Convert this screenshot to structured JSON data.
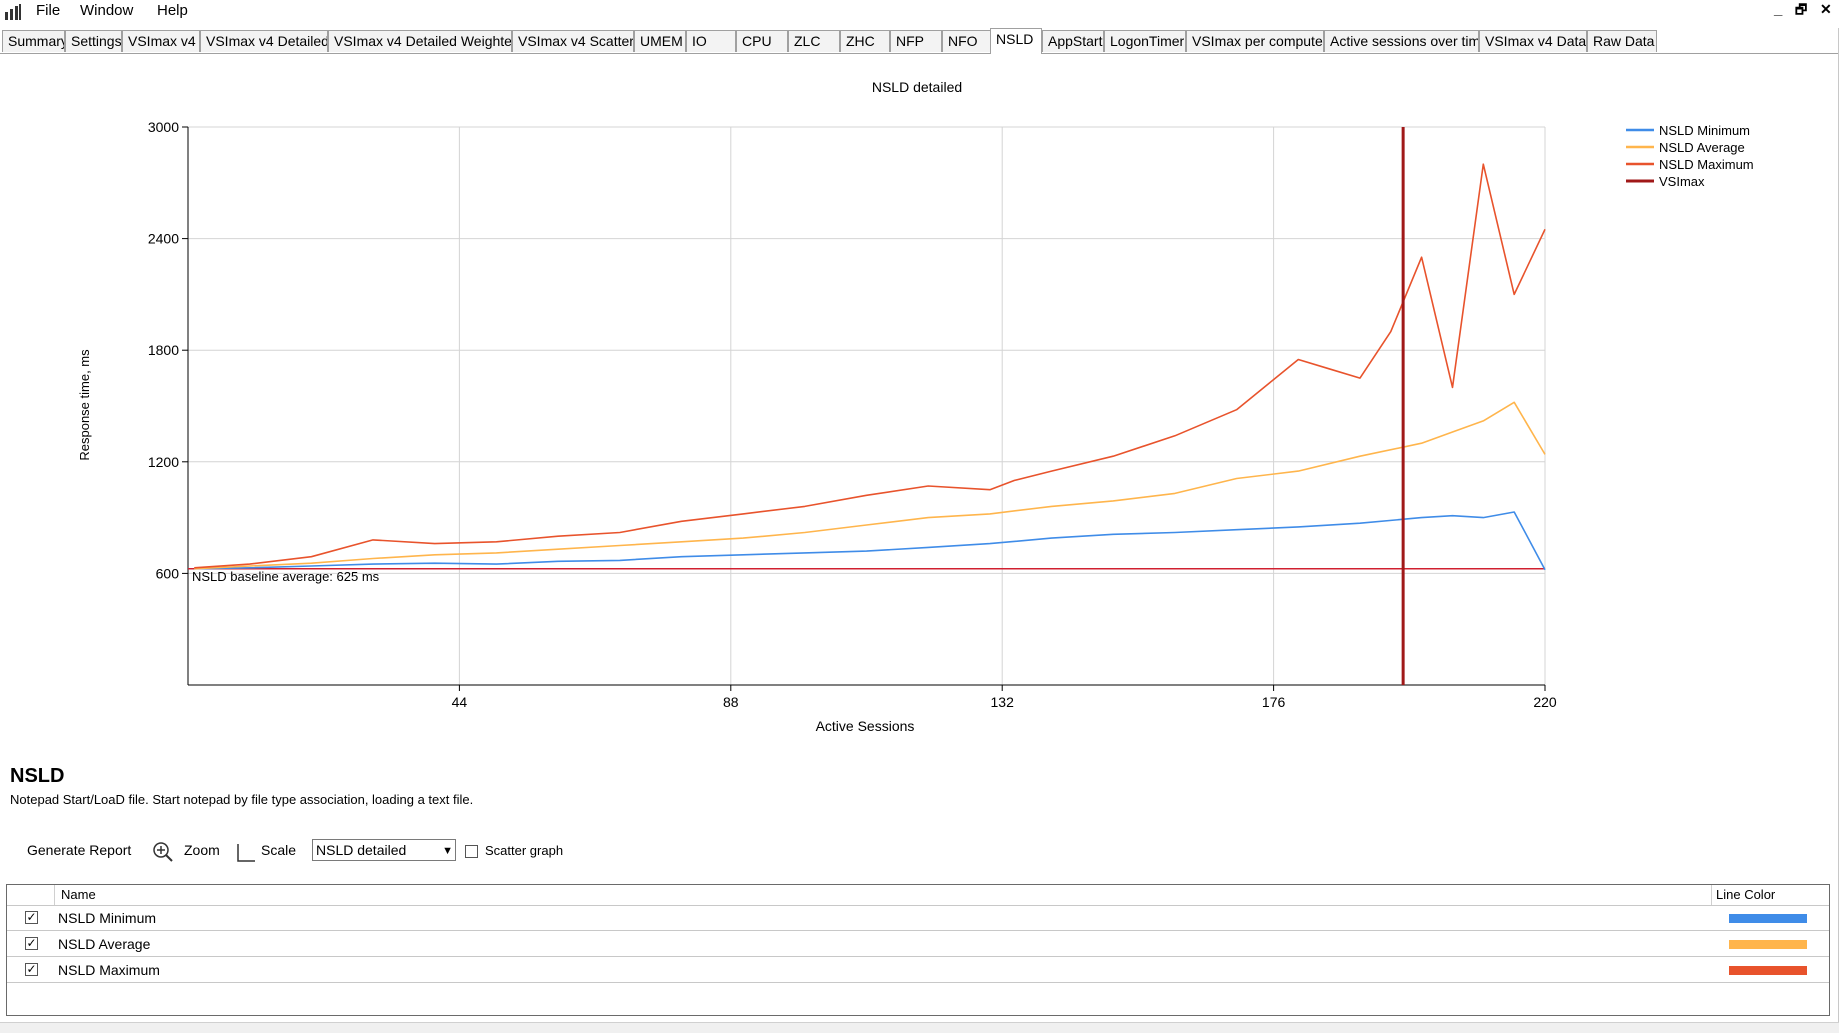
{
  "menu": {
    "file": "File",
    "window": "Window",
    "help": "Help"
  },
  "window_controls": {
    "minimize": "_",
    "restore": "🗗",
    "close": "✕"
  },
  "tabs": [
    "Summary",
    "Settings",
    "VSImax v4",
    "VSImax v4 Detailed",
    "VSImax v4 Detailed Weighted",
    "VSImax v4 Scatter",
    "UMEM",
    "IO",
    "CPU",
    "ZLC",
    "ZHC",
    "NFP",
    "NFO",
    "NSLD",
    "AppStart",
    "LogonTimer",
    "VSImax per computer",
    "Active sessions over time",
    "VSImax v4 Data",
    "Raw Data"
  ],
  "active_tab": "NSLD",
  "chart_data": {
    "type": "line",
    "title": "NSLD detailed",
    "xlabel": "Active Sessions",
    "ylabel": "Response time, ms",
    "xlim": [
      0,
      220
    ],
    "ylim": [
      0,
      3000
    ],
    "x_ticks": [
      44,
      88,
      132,
      176,
      220
    ],
    "y_ticks": [
      600,
      1200,
      1800,
      2400,
      3000
    ],
    "grid": true,
    "legend_position": "top-right",
    "legend": [
      "NSLD Minimum",
      "NSLD Average",
      "NSLD Maximum",
      "VSImax"
    ],
    "series": [
      {
        "name": "NSLD Minimum",
        "color": "#3f8ce8",
        "x": [
          1,
          10,
          20,
          30,
          40,
          50,
          60,
          70,
          80,
          90,
          100,
          110,
          120,
          130,
          140,
          150,
          160,
          170,
          180,
          190,
          200,
          205,
          210,
          215,
          220
        ],
        "y": [
          625,
          630,
          640,
          650,
          655,
          650,
          665,
          670,
          690,
          700,
          710,
          720,
          740,
          760,
          790,
          810,
          820,
          835,
          850,
          870,
          900,
          910,
          900,
          930,
          620
        ]
      },
      {
        "name": "NSLD Average",
        "color": "#ffb54c",
        "x": [
          1,
          10,
          20,
          30,
          40,
          50,
          60,
          70,
          80,
          90,
          100,
          110,
          120,
          130,
          140,
          150,
          160,
          170,
          180,
          190,
          200,
          205,
          210,
          215,
          220
        ],
        "y": [
          625,
          640,
          655,
          680,
          700,
          710,
          730,
          750,
          770,
          790,
          820,
          860,
          900,
          920,
          960,
          990,
          1030,
          1110,
          1150,
          1230,
          1300,
          1360,
          1420,
          1520,
          1240
        ]
      },
      {
        "name": "NSLD Maximum",
        "color": "#e8532c",
        "x": [
          1,
          10,
          20,
          30,
          40,
          50,
          60,
          70,
          80,
          90,
          100,
          110,
          120,
          130,
          134,
          140,
          150,
          160,
          170,
          180,
          185,
          190,
          195,
          200,
          205,
          210,
          215,
          220
        ],
        "y": [
          630,
          650,
          690,
          780,
          760,
          770,
          800,
          820,
          880,
          920,
          960,
          1020,
          1070,
          1050,
          1100,
          1150,
          1230,
          1340,
          1480,
          1750,
          1700,
          1650,
          1900,
          2300,
          1600,
          2800,
          2100,
          2450
        ]
      },
      {
        "name": "VSImax",
        "color": "#a01818",
        "type": "vertical-line",
        "x": 197
      }
    ],
    "baseline": {
      "value": 625,
      "label": "NSLD baseline average: 625 ms",
      "color": "#d02030"
    }
  },
  "section": {
    "title": "NSLD",
    "description": "Notepad Start/LoaD file. Start notepad by file type association, loading a text file."
  },
  "toolbar": {
    "generate_report": "Generate Report",
    "zoom": "Zoom",
    "scale": "Scale",
    "graph_select": "NSLD detailed",
    "scatter_graph": "Scatter graph",
    "scatter_checked": false
  },
  "table": {
    "headers": {
      "name": "Name",
      "line_color": "Line Color"
    },
    "rows": [
      {
        "name": "NSLD Minimum",
        "checked": true,
        "color": "#3f8ce8"
      },
      {
        "name": "NSLD Average",
        "checked": true,
        "color": "#ffb54c"
      },
      {
        "name": "NSLD Maximum",
        "checked": true,
        "color": "#e8532c"
      }
    ]
  }
}
